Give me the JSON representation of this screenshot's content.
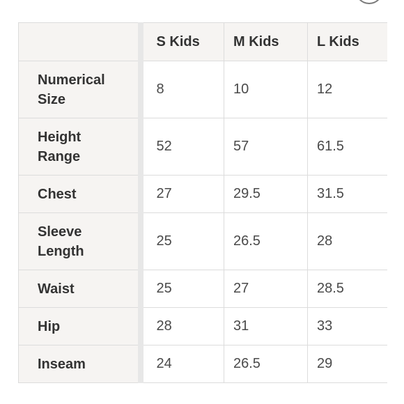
{
  "size_chart": {
    "columns": [
      "S Kids",
      "M Kids",
      "L Kids"
    ],
    "rows": [
      {
        "label_lines": [
          "Numerical",
          "Size"
        ],
        "values": [
          "8",
          "10",
          "12"
        ]
      },
      {
        "label_lines": [
          "Height",
          "Range"
        ],
        "values": [
          "52",
          "57",
          "61.5"
        ]
      },
      {
        "label_lines": [
          "Chest"
        ],
        "values": [
          "27",
          "29.5",
          "31.5"
        ]
      },
      {
        "label_lines": [
          "Sleeve",
          "Length"
        ],
        "values": [
          "25",
          "26.5",
          "28"
        ]
      },
      {
        "label_lines": [
          "Waist"
        ],
        "values": [
          "25",
          "27",
          "28.5"
        ]
      },
      {
        "label_lines": [
          "Hip"
        ],
        "values": [
          "28",
          "31",
          "33"
        ]
      },
      {
        "label_lines": [
          "Inseam"
        ],
        "values": [
          "24",
          "26.5",
          "29"
        ]
      }
    ]
  },
  "colors": {
    "header_background": "#f6f4f2",
    "grid_line": "#dcdcdc",
    "divider_strip": "#e7e7e7",
    "label_text": "#333333",
    "value_text": "#4a4a4a"
  }
}
